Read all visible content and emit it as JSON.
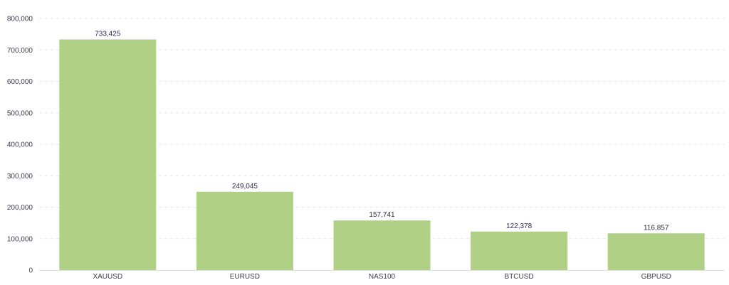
{
  "chart_data": {
    "type": "bar",
    "categories": [
      "XAUUSD",
      "EURUSD",
      "NAS100",
      "BTCUSD",
      "GBPUSD"
    ],
    "values": [
      733425,
      249045,
      157741,
      122378,
      116857
    ],
    "value_labels": [
      "733,425",
      "249,045",
      "157,741",
      "122,378",
      "116,857"
    ],
    "title": "",
    "xlabel": "",
    "ylabel": "",
    "ylim": [
      0,
      800000
    ],
    "yticks": [
      0,
      100000,
      200000,
      300000,
      400000,
      500000,
      600000,
      700000,
      800000
    ],
    "ytick_labels": [
      "0",
      "100,000",
      "200,000",
      "300,000",
      "400,000",
      "500,000",
      "600,000",
      "700,000",
      "800,000"
    ],
    "grid": true,
    "legend": "none",
    "bar_color": "#b0d086"
  }
}
